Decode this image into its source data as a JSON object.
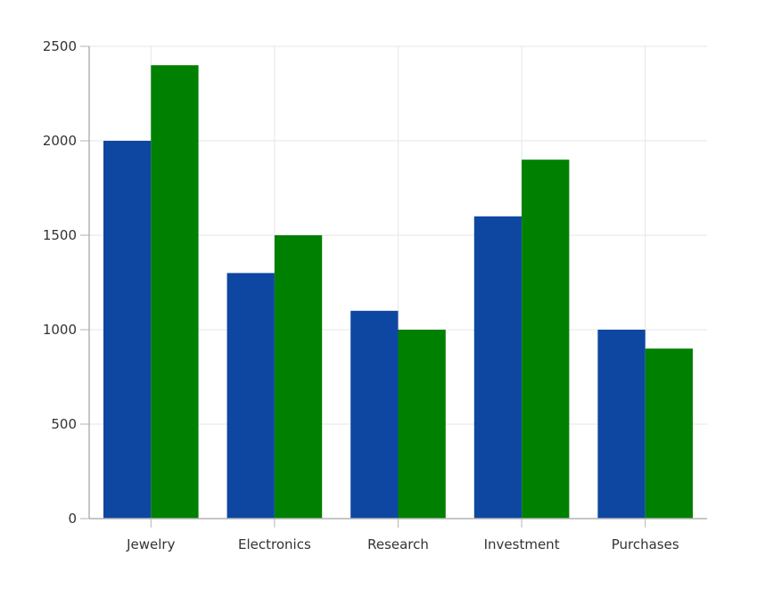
{
  "chart_data": {
    "type": "bar",
    "categories": [
      "Jewelry",
      "Electronics",
      "Research",
      "Investment",
      "Purchases"
    ],
    "series": [
      {
        "values": [
          2000,
          1300,
          1100,
          1600,
          1000
        ],
        "color": "#0e47a1"
      },
      {
        "values": [
          2400,
          1500,
          1000,
          1900,
          900
        ],
        "color": "#008000"
      }
    ],
    "yticks": [
      0,
      500,
      1000,
      1500,
      2000,
      2500
    ],
    "ylim": [
      0,
      2500
    ],
    "grid": true,
    "legend": "none",
    "title": "",
    "xlabel": "",
    "ylabel": ""
  }
}
